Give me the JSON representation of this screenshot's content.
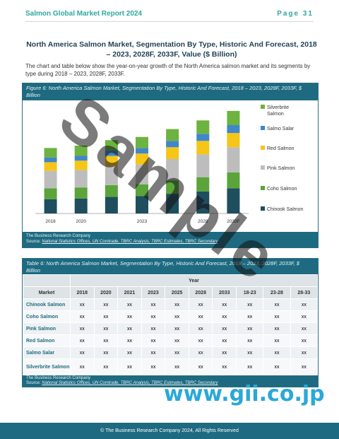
{
  "header": {
    "report_title": "Salmon Global Market Report 2024",
    "page_label": "Page 31"
  },
  "section_title": "North America Salmon Market, Segmentation By Type, Historic And Forecast, 2018 – 2023, 2028F, 2033F, Value ($ Billion)",
  "intro_text": "The chart and table below show the year-on-year growth of the North America salmon market and its segments by type during 2018 – 2023, 2028F, 2033F.",
  "figure": {
    "caption": "Figure 6: North America Salmon Market, Segmentation By Type, Historic And Forecast, 2018 – 2023, 2028F, 2033F, $ Billion",
    "source_label": "The Business Research Company",
    "source_prefix": "Source: ",
    "source_text": "National Statistics Offices, UN Comtrade, TBRC Analysis, TBRC Estimates, TBRC Secondary"
  },
  "chart_data": {
    "type": "bar",
    "stacked": true,
    "categories": [
      "2018",
      "2020",
      "",
      "2023",
      "",
      "2028",
      "2033F"
    ],
    "tick_labels": [
      "2018",
      "2020",
      "2023",
      "2028",
      "2033F"
    ],
    "legend_position": "right",
    "series": [
      {
        "name": "Chinook Salmon",
        "color": "#1f4e5f",
        "values": [
          18,
          19,
          21,
          22,
          25,
          28,
          32
        ]
      },
      {
        "name": "Coho Salmon",
        "color": "#5aa43a",
        "values": [
          14,
          14,
          15,
          15,
          17,
          18,
          20
        ]
      },
      {
        "name": "Pink Salmon",
        "color": "#bdbdbd",
        "values": [
          22,
          22,
          24,
          25,
          27,
          29,
          32
        ]
      },
      {
        "name": "Red Salmon",
        "color": "#f5c518",
        "values": [
          11,
          12,
          13,
          14,
          15,
          17,
          18
        ]
      },
      {
        "name": "Salmo Salar",
        "color": "#3f87c9",
        "values": [
          6,
          6,
          7,
          7,
          8,
          9,
          10
        ]
      },
      {
        "name": "Silverbrite Salmon",
        "color": "#6cb33f",
        "values": [
          12,
          13,
          13,
          14,
          15,
          17,
          18
        ]
      }
    ]
  },
  "table": {
    "caption": "Table 6: North America Salmon Market, Segmentation By Type, Historic And Forecast, 2018 – 2023, 2028F, 2033F, $ Billion",
    "group_header": "Year",
    "row_header": "Market",
    "columns": [
      "2018",
      "2020",
      "2021",
      "2023",
      "2025",
      "2028",
      "2033",
      "18-23",
      "23-28",
      "28-33"
    ],
    "rows": [
      {
        "label": "Chinook Salmon",
        "cells": [
          "xx",
          "xx",
          "xx",
          "xx",
          "xx",
          "xx",
          "xx",
          "xx",
          "xx",
          "xx"
        ]
      },
      {
        "label": "Coho Salmon",
        "cells": [
          "xx",
          "xx",
          "xx",
          "xx",
          "xx",
          "xx",
          "xx",
          "xx",
          "xx",
          "xx"
        ]
      },
      {
        "label": "Pink Salmon",
        "cells": [
          "xx",
          "xx",
          "xx",
          "xx",
          "xx",
          "xx",
          "xx",
          "xx",
          "xx",
          "xx"
        ]
      },
      {
        "label": "Red Salmon",
        "cells": [
          "xx",
          "xx",
          "xx",
          "xx",
          "xx",
          "xx",
          "xx",
          "xx",
          "xx",
          "xx"
        ]
      },
      {
        "label": "Salmo Salar",
        "cells": [
          "xx",
          "xx",
          "xx",
          "xx",
          "xx",
          "xx",
          "xx",
          "xx",
          "xx",
          "xx"
        ]
      },
      {
        "label": "Silverbrite Salmon",
        "cells": [
          "xx",
          "xx",
          "xx",
          "xx",
          "xx",
          "xx",
          "xx",
          "xx",
          "xx",
          "xx"
        ]
      }
    ],
    "source_label": "The Business Research Company",
    "source_prefix": "Source: ",
    "source_text": "National Statistics Offices, UN Comtrade, TBRC Analysis, TBRC Estimates, TBRC Secondary"
  },
  "watermark": "Sample",
  "gii_logo": "www.gii.co.jp",
  "footer": "© The Business Research Company 2024, All Rights Reserved"
}
